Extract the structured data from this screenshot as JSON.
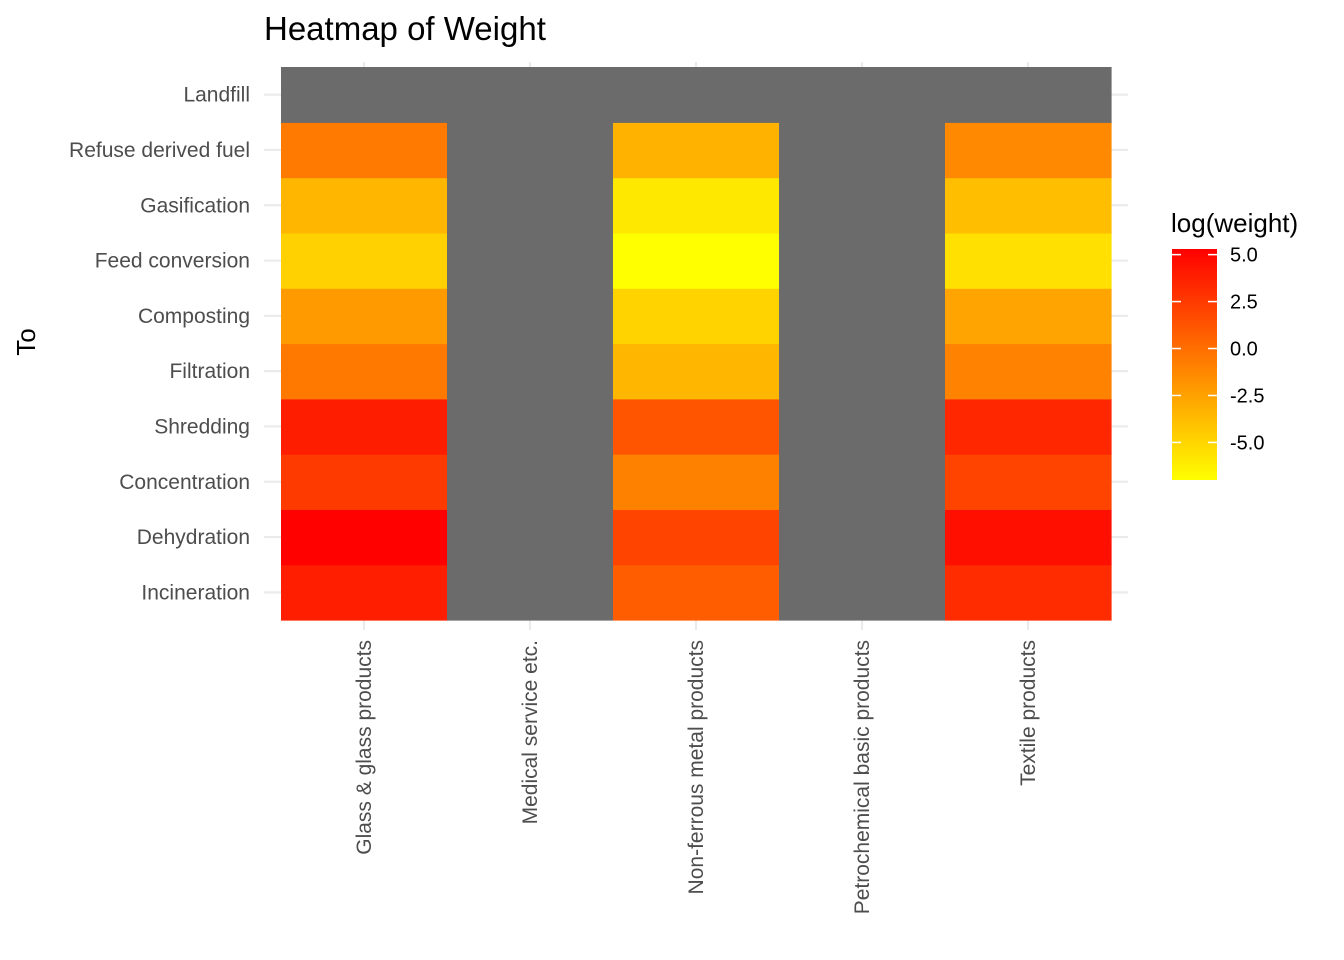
{
  "chart_data": {
    "type": "heatmap",
    "title": "Heatmap of Weight",
    "xlabel": "",
    "ylabel": "To",
    "x_categories": [
      "Glass & glass products",
      "Medical service etc.",
      "Non-ferrous metal products",
      "Petrochemical basic products",
      "Textile products"
    ],
    "y_categories": [
      "Incineration",
      "Dehydration",
      "Concentration",
      "Shredding",
      "Filtration",
      "Composting",
      "Feed conversion",
      "Gasification",
      "Refuse derived fuel",
      "Landfill"
    ],
    "value_label": "log(weight)",
    "color_scale": {
      "low": "#ffff00",
      "high": "#ff0000",
      "na": "#6b6b6b",
      "limits": [
        -7,
        5.3
      ]
    },
    "legend": {
      "title": "log(weight)",
      "ticks": [
        5.0,
        2.5,
        0.0,
        -2.5,
        -5.0
      ],
      "tick_labels": [
        "5.0",
        "2.5",
        "0.0",
        "-2.5",
        "-5.0"
      ],
      "position": "right"
    },
    "grid": true,
    "values": [
      [
        3.8,
        null,
        0.8,
        null,
        3.2
      ],
      [
        5.2,
        null,
        2.0,
        null,
        4.6
      ],
      [
        2.5,
        null,
        -0.9,
        null,
        2.0
      ],
      [
        3.9,
        null,
        1.2,
        null,
        3.4
      ],
      [
        -0.5,
        null,
        -3.5,
        null,
        -1.0
      ],
      [
        -2.2,
        null,
        -4.9,
        null,
        -2.6
      ],
      [
        -4.8,
        null,
        -7.0,
        null,
        -5.5
      ],
      [
        -3.5,
        null,
        -5.9,
        null,
        -3.9
      ],
      [
        -0.6,
        null,
        -3.3,
        null,
        -1.3
      ],
      [
        null,
        null,
        null,
        null,
        null
      ]
    ]
  }
}
